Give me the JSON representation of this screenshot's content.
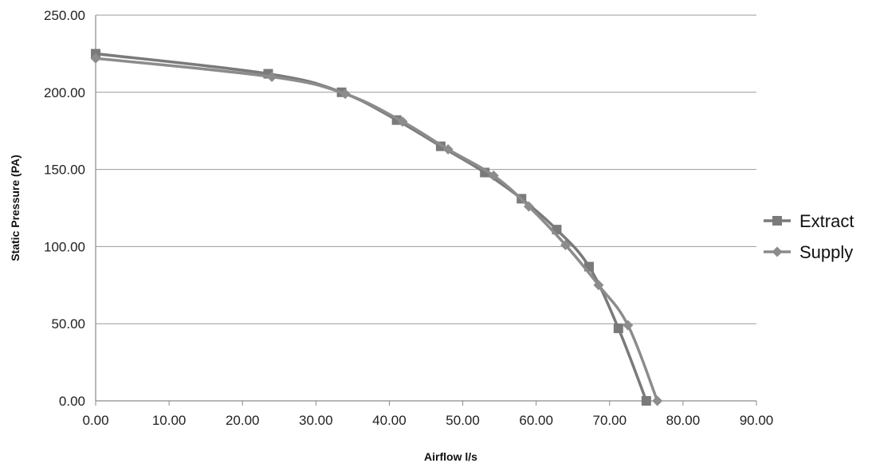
{
  "chart_data": {
    "type": "line",
    "title": "",
    "xlabel": "Airflow l/s",
    "ylabel": "Static Pressure (PA)",
    "xlim": [
      0,
      90
    ],
    "ylim": [
      0,
      250
    ],
    "xticks": [
      "0.00",
      "10.00",
      "20.00",
      "30.00",
      "40.00",
      "50.00",
      "60.00",
      "70.00",
      "80.00",
      "90.00"
    ],
    "yticks": [
      "0.00",
      "50.00",
      "100.00",
      "150.00",
      "200.00",
      "250.00"
    ],
    "grid": "horizontal",
    "legend_position": "right",
    "series": [
      {
        "name": "Extract",
        "marker": "square",
        "color": "#7a7a7a",
        "x": [
          0,
          23.5,
          33.5,
          41,
          47,
          53,
          58,
          62.8,
          67.2,
          71.2,
          75
        ],
        "y": [
          225,
          212,
          200,
          182,
          165,
          148,
          131,
          111,
          87,
          47,
          0
        ]
      },
      {
        "name": "Supply",
        "marker": "diamond",
        "color": "#8c8c8c",
        "x": [
          0,
          24,
          34,
          41.8,
          48,
          54.2,
          59,
          64,
          68.5,
          72.5,
          76.5
        ],
        "y": [
          222,
          210,
          199,
          181,
          163,
          146,
          126,
          101,
          75,
          49,
          0
        ]
      }
    ]
  }
}
